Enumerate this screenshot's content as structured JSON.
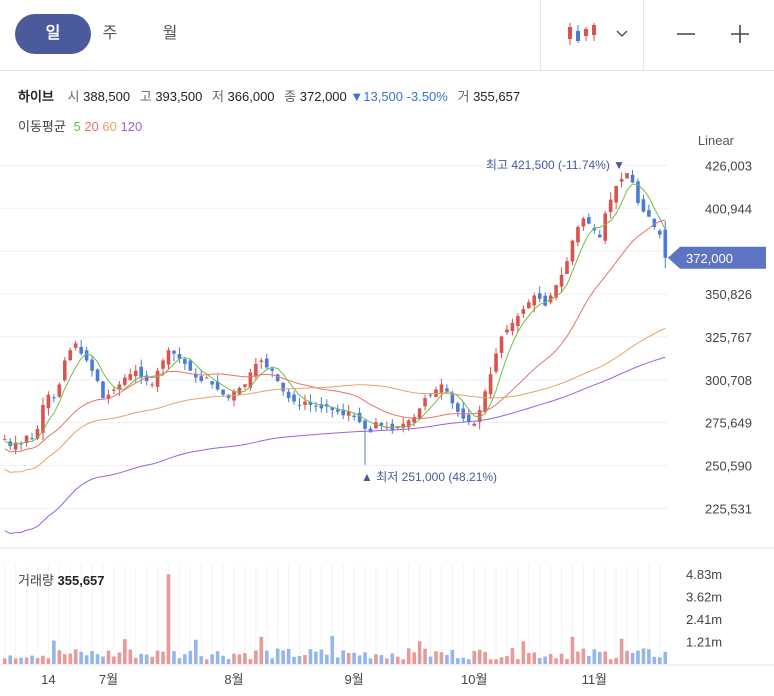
{
  "tabs": [
    {
      "label": "일",
      "active": true
    },
    {
      "label": "주",
      "active": false
    },
    {
      "label": "월",
      "active": false
    }
  ],
  "toolbar": {
    "chart_type_icon": "candlestick-icon",
    "dropdown_icon": "chevron-down-icon",
    "zoom_out_icon": "minus-icon",
    "zoom_in_icon": "plus-icon"
  },
  "stock": {
    "name": "하이브",
    "open_label": "시",
    "open": "388,500",
    "high_label": "고",
    "high": "393,500",
    "low_label": "저",
    "low": "366,000",
    "close_label": "종",
    "close": "372,000",
    "change": "▼13,500",
    "change_pct": "-3.50%",
    "volume_label": "거",
    "volume": "355,657"
  },
  "moving_average": {
    "label": "이동평균",
    "periods": [
      {
        "value": "5",
        "color": "#6dbf4b"
      },
      {
        "value": "20",
        "color": "#e8716f"
      },
      {
        "value": "60",
        "color": "#eaa365"
      },
      {
        "value": "120",
        "color": "#9b63e0"
      }
    ]
  },
  "scale_mode": "Linear",
  "colors": {
    "up": "#d9534f",
    "down": "#4a7bd8",
    "accent": "#4a5a9a",
    "price_tag": "#5d74c4"
  },
  "chart_data": {
    "type": "candlestick",
    "y_ticks": [
      "426,003",
      "400,944",
      "375,885",
      "350,826",
      "325,767",
      "300,708",
      "275,649",
      "250,590",
      "225,531"
    ],
    "y_tick_values": [
      426003,
      400944,
      375885,
      350826,
      325767,
      300708,
      275649,
      250590,
      225531
    ],
    "ylim": [
      210000,
      435000
    ],
    "x_labels": [
      "14",
      "7월",
      "8월",
      "9월",
      "10월",
      "11월"
    ],
    "x_label_index": [
      8,
      19,
      42,
      64,
      86,
      108
    ],
    "current_price": "372,000",
    "max_annotation": "최고 421,500 (-11.74%)",
    "min_annotation": "최저 251,000 (48.21%)",
    "max_value": 421500,
    "min_value": 251000,
    "closes": [
      266000,
      262000,
      264000,
      263000,
      268000,
      266000,
      272000,
      286000,
      292000,
      290000,
      298000,
      312000,
      318000,
      322000,
      316000,
      312000,
      306000,
      300000,
      290000,
      292000,
      295000,
      298000,
      302000,
      304000,
      306000,
      302000,
      300000,
      298000,
      306000,
      312000,
      318000,
      316000,
      313000,
      310000,
      306000,
      302000,
      300000,
      302000,
      298000,
      295000,
      292000,
      290000,
      294000,
      296000,
      298000,
      305000,
      310000,
      312000,
      308000,
      306000,
      300000,
      294000,
      290000,
      288000,
      286000,
      288000,
      286000,
      285000,
      284000,
      285000,
      283000,
      282000,
      280000,
      282000,
      279000,
      276000,
      272000,
      270000,
      276000,
      274000,
      273000,
      271000,
      273000,
      275000,
      277000,
      279000,
      284000,
      290000,
      292000,
      295000,
      298000,
      294000,
      287000,
      282000,
      278000,
      276000,
      275000,
      283000,
      294000,
      304000,
      316000,
      326000,
      330000,
      334000,
      338000,
      342000,
      346000,
      350000,
      348000,
      344000,
      350000,
      356000,
      362000,
      370000,
      382000,
      390000,
      395000,
      392000,
      388000,
      384000,
      398000,
      406000,
      414000,
      418000,
      421500,
      416000,
      404000,
      399000,
      396000,
      390000,
      385500,
      372000
    ],
    "volume_axis_ticks": [
      "4.83m",
      "3.62m",
      "2.41m",
      "1.21m"
    ],
    "volume_axis_values": [
      4830000,
      3620000,
      2410000,
      1210000
    ],
    "volume_title": "거래량",
    "volume_last": "355,657"
  }
}
